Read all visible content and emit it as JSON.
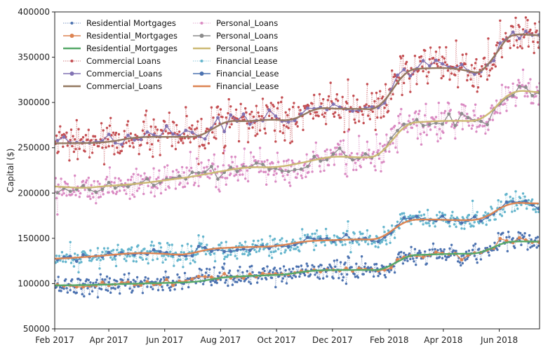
{
  "chart_data": {
    "type": "line",
    "title": "",
    "xlabel": "",
    "ylabel": "Capital ($)",
    "x_range": [
      "2017-02-01",
      "2018-07-15"
    ],
    "ylim": [
      50000,
      400000
    ],
    "x_ticks": [
      "Feb 2017",
      "Apr 2017",
      "Jun 2017",
      "Aug 2017",
      "Oct 2017",
      "Dec 2017",
      "Feb 2018",
      "Apr 2018",
      "Jun 2018"
    ],
    "x_tick_dates": [
      "2017-02-01",
      "2017-04-01",
      "2017-06-01",
      "2017-08-01",
      "2017-10-01",
      "2017-12-01",
      "2018-02-01",
      "2018-04-01",
      "2018-06-01"
    ],
    "y_ticks": [
      "50000",
      "100000",
      "150000",
      "200000",
      "250000",
      "300000",
      "350000",
      "400000"
    ],
    "y_tick_values": [
      50000,
      100000,
      150000,
      200000,
      250000,
      300000,
      350000,
      400000
    ],
    "grid": false,
    "legend_position": "top-left",
    "legend": [
      [
        "Residential Mortgages",
        "Personal_Loans"
      ],
      [
        "Residential_Mortgages",
        "Personal_Loans"
      ],
      [
        "Residential_Mortgages",
        "Personal_Loans"
      ],
      [
        "Commercial Loans",
        "Financial Lease"
      ],
      [
        "Commercial_Loans",
        "Financial_Lease"
      ],
      [
        "Commercial_Loans",
        "Financial_Lease"
      ]
    ],
    "series": [
      {
        "name": "Residential Mortgages",
        "style": "daily",
        "color": "#4C72B0",
        "x": [
          "2017-02-01",
          "2017-03-15",
          "2017-05-01",
          "2017-06-15",
          "2017-07-10",
          "2017-08-01",
          "2017-09-15",
          "2017-10-15",
          "2017-11-01",
          "2017-12-01",
          "2018-01-01",
          "2018-02-01",
          "2018-02-15",
          "2018-03-15",
          "2018-04-15",
          "2018-05-15",
          "2018-06-01",
          "2018-06-15",
          "2018-07-15"
        ],
        "y": [
          98000,
          98500,
          100000,
          101000,
          102000,
          107000,
          109000,
          110000,
          114000,
          115000,
          115000,
          115000,
          131000,
          132000,
          133000,
          133000,
          145000,
          147000,
          146000
        ]
      },
      {
        "name": "Residential_Mortgages",
        "style": "weekly",
        "color": "#DD8452",
        "x": [
          "2017-02-01",
          "2017-03-15",
          "2017-05-01",
          "2017-06-15",
          "2017-07-10",
          "2017-08-01",
          "2017-09-15",
          "2017-10-15",
          "2017-11-01",
          "2017-12-01",
          "2018-01-01",
          "2018-02-01",
          "2018-02-15",
          "2018-03-15",
          "2018-04-15",
          "2018-05-15",
          "2018-06-01",
          "2018-06-15",
          "2018-07-15"
        ],
        "y": [
          98000,
          98500,
          100000,
          101000,
          102000,
          107000,
          109000,
          110000,
          114000,
          115000,
          115000,
          115000,
          131000,
          132000,
          133000,
          133000,
          145000,
          147000,
          146000
        ]
      },
      {
        "name": "Residential_Mortgages",
        "style": "smooth",
        "color": "#55A868",
        "x": [
          "2017-02-01",
          "2017-03-15",
          "2017-05-01",
          "2017-06-15",
          "2017-07-10",
          "2017-08-01",
          "2017-09-15",
          "2017-10-15",
          "2017-11-01",
          "2017-12-01",
          "2018-01-01",
          "2018-02-01",
          "2018-02-15",
          "2018-03-15",
          "2018-04-15",
          "2018-05-15",
          "2018-06-01",
          "2018-06-15",
          "2018-07-15"
        ],
        "y": [
          98000,
          98500,
          100000,
          101000,
          102000,
          107000,
          109000,
          110000,
          114000,
          115000,
          115000,
          115000,
          131000,
          132000,
          133000,
          133000,
          145000,
          147000,
          146000
        ]
      },
      {
        "name": "Commercial Loans",
        "style": "daily",
        "color": "#C44E52",
        "x": [
          "2017-02-01",
          "2017-03-01",
          "2017-04-01",
          "2017-05-01",
          "2017-06-15",
          "2017-07-15",
          "2017-08-01",
          "2017-09-01",
          "2017-10-01",
          "2017-10-20",
          "2017-11-10",
          "2017-12-01",
          "2018-01-01",
          "2018-01-25",
          "2018-02-15",
          "2018-03-15",
          "2018-04-15",
          "2018-05-01",
          "2018-05-20",
          "2018-06-01",
          "2018-06-15",
          "2018-07-15"
        ],
        "y": [
          255000,
          255000,
          256000,
          262000,
          262000,
          262000,
          280000,
          279000,
          282000,
          278000,
          295000,
          293000,
          293000,
          292000,
          336000,
          338000,
          338000,
          334000,
          330000,
          368000,
          377000,
          373000
        ]
      },
      {
        "name": "Commercial_Loans",
        "style": "weekly",
        "color": "#8172B3",
        "x": [
          "2017-02-01",
          "2017-03-01",
          "2017-04-01",
          "2017-05-01",
          "2017-06-15",
          "2017-07-15",
          "2017-08-01",
          "2017-09-01",
          "2017-10-01",
          "2017-10-20",
          "2017-11-10",
          "2017-12-01",
          "2018-01-01",
          "2018-01-25",
          "2018-02-15",
          "2018-03-15",
          "2018-04-15",
          "2018-05-01",
          "2018-05-20",
          "2018-06-01",
          "2018-06-15",
          "2018-07-15"
        ],
        "y": [
          255000,
          255000,
          256000,
          262000,
          262000,
          262000,
          280000,
          279000,
          282000,
          278000,
          295000,
          293000,
          293000,
          292000,
          336000,
          338000,
          338000,
          334000,
          330000,
          368000,
          377000,
          373000
        ]
      },
      {
        "name": "Commercial_Loans",
        "style": "smooth",
        "color": "#937860",
        "x": [
          "2017-02-01",
          "2017-03-01",
          "2017-04-01",
          "2017-05-01",
          "2017-06-15",
          "2017-07-15",
          "2017-08-01",
          "2017-09-01",
          "2017-10-01",
          "2017-10-20",
          "2017-11-10",
          "2017-12-01",
          "2018-01-01",
          "2018-01-25",
          "2018-02-15",
          "2018-03-15",
          "2018-04-15",
          "2018-05-01",
          "2018-05-20",
          "2018-06-01",
          "2018-06-15",
          "2018-07-15"
        ],
        "y": [
          255000,
          255000,
          256000,
          262000,
          262000,
          262000,
          280000,
          279000,
          282000,
          278000,
          295000,
          293000,
          293000,
          292000,
          336000,
          338000,
          338000,
          334000,
          330000,
          368000,
          377000,
          373000
        ]
      },
      {
        "name": "Personal_Loans",
        "style": "daily",
        "color": "#DA8BC3",
        "x": [
          "2017-02-01",
          "2017-03-01",
          "2017-04-01",
          "2017-05-01",
          "2017-06-01",
          "2017-07-01",
          "2017-08-01",
          "2017-09-01",
          "2017-10-01",
          "2017-11-01",
          "2017-12-01",
          "2018-01-01",
          "2018-01-25",
          "2018-02-15",
          "2018-03-15",
          "2018-04-15",
          "2018-05-15",
          "2018-06-01",
          "2018-06-15",
          "2018-07-15"
        ],
        "y": [
          208000,
          205000,
          208000,
          210000,
          214000,
          218000,
          224000,
          229000,
          228000,
          234000,
          241000,
          239000,
          240000,
          277000,
          279000,
          280000,
          279000,
          300000,
          315000,
          310000
        ]
      },
      {
        "name": "Personal_Loans",
        "style": "weekly",
        "color": "#8C8C8C",
        "x": [
          "2017-02-01",
          "2017-03-01",
          "2017-04-01",
          "2017-05-01",
          "2017-06-01",
          "2017-07-01",
          "2017-08-01",
          "2017-09-01",
          "2017-10-01",
          "2017-11-01",
          "2017-12-01",
          "2018-01-01",
          "2018-01-25",
          "2018-02-15",
          "2018-03-15",
          "2018-04-15",
          "2018-05-15",
          "2018-06-01",
          "2018-06-15",
          "2018-07-15"
        ],
        "y": [
          208000,
          205000,
          208000,
          210000,
          214000,
          218000,
          224000,
          229000,
          228000,
          234000,
          241000,
          239000,
          240000,
          277000,
          279000,
          280000,
          279000,
          300000,
          315000,
          310000
        ]
      },
      {
        "name": "Personal_Loans",
        "style": "smooth",
        "color": "#CCB974",
        "x": [
          "2017-02-01",
          "2017-03-01",
          "2017-04-01",
          "2017-05-01",
          "2017-06-01",
          "2017-07-01",
          "2017-08-01",
          "2017-09-01",
          "2017-10-01",
          "2017-11-01",
          "2017-12-01",
          "2018-01-01",
          "2018-01-25",
          "2018-02-15",
          "2018-03-15",
          "2018-04-15",
          "2018-05-15",
          "2018-06-01",
          "2018-06-15",
          "2018-07-15"
        ],
        "y": [
          208000,
          205000,
          208000,
          210000,
          214000,
          218000,
          224000,
          229000,
          228000,
          234000,
          241000,
          239000,
          240000,
          277000,
          279000,
          280000,
          279000,
          300000,
          315000,
          310000
        ]
      },
      {
        "name": "Financial Lease",
        "style": "daily",
        "color": "#64B5CD",
        "x": [
          "2017-02-01",
          "2017-03-15",
          "2017-05-01",
          "2017-06-01",
          "2017-06-25",
          "2017-07-15",
          "2017-08-15",
          "2017-10-01",
          "2017-11-01",
          "2017-12-01",
          "2018-01-01",
          "2018-01-25",
          "2018-02-15",
          "2018-03-15",
          "2018-04-15",
          "2018-05-15",
          "2018-06-10",
          "2018-07-15"
        ],
        "y": [
          127000,
          130000,
          134000,
          133000,
          131000,
          138000,
          140000,
          141000,
          147000,
          148000,
          149000,
          148000,
          170000,
          171000,
          170000,
          170000,
          190000,
          188000
        ]
      },
      {
        "name": "Financial_Lease",
        "style": "weekly",
        "color": "#4C72B0",
        "x": [
          "2017-02-01",
          "2017-03-15",
          "2017-05-01",
          "2017-06-01",
          "2017-06-25",
          "2017-07-15",
          "2017-08-15",
          "2017-10-01",
          "2017-11-01",
          "2017-12-01",
          "2018-01-01",
          "2018-01-25",
          "2018-02-15",
          "2018-03-15",
          "2018-04-15",
          "2018-05-15",
          "2018-06-10",
          "2018-07-15"
        ],
        "y": [
          127000,
          130000,
          134000,
          133000,
          131000,
          138000,
          140000,
          141000,
          147000,
          148000,
          149000,
          148000,
          170000,
          171000,
          170000,
          170000,
          190000,
          188000
        ]
      },
      {
        "name": "Financial_Lease",
        "style": "smooth",
        "color": "#DD8452",
        "x": [
          "2017-02-01",
          "2017-03-15",
          "2017-05-01",
          "2017-06-01",
          "2017-06-25",
          "2017-07-15",
          "2017-08-15",
          "2017-10-01",
          "2017-11-01",
          "2017-12-01",
          "2018-01-01",
          "2018-01-25",
          "2018-02-15",
          "2018-03-15",
          "2018-04-15",
          "2018-05-15",
          "2018-06-10",
          "2018-07-15"
        ],
        "y": [
          127000,
          130000,
          134000,
          133000,
          131000,
          138000,
          140000,
          141000,
          147000,
          148000,
          149000,
          148000,
          170000,
          171000,
          170000,
          170000,
          190000,
          188000
        ]
      }
    ]
  }
}
